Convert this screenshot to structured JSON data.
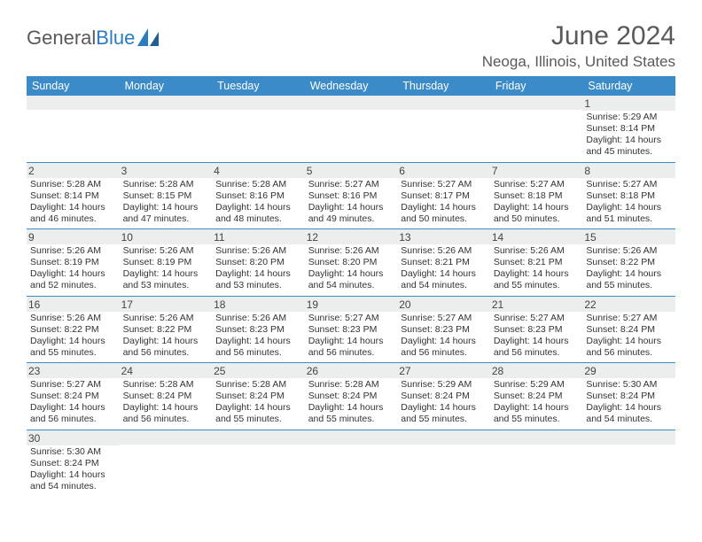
{
  "logo": {
    "text1": "General",
    "text2": "Blue"
  },
  "title": "June 2024",
  "location": "Neoga, Illinois, United States",
  "colors": {
    "header_bg": "#3b8bc9",
    "header_fg": "#ffffff",
    "daynum_bg": "#eceded",
    "rule": "#3b8bc9",
    "text": "#333333",
    "logo_gray": "#58595b",
    "logo_blue": "#2b7bbf"
  },
  "weekdays": [
    "Sunday",
    "Monday",
    "Tuesday",
    "Wednesday",
    "Thursday",
    "Friday",
    "Saturday"
  ],
  "weeks": [
    [
      {
        "n": "",
        "sr": "",
        "ss": "",
        "dl": ""
      },
      {
        "n": "",
        "sr": "",
        "ss": "",
        "dl": ""
      },
      {
        "n": "",
        "sr": "",
        "ss": "",
        "dl": ""
      },
      {
        "n": "",
        "sr": "",
        "ss": "",
        "dl": ""
      },
      {
        "n": "",
        "sr": "",
        "ss": "",
        "dl": ""
      },
      {
        "n": "",
        "sr": "",
        "ss": "",
        "dl": ""
      },
      {
        "n": "1",
        "sr": "Sunrise: 5:29 AM",
        "ss": "Sunset: 8:14 PM",
        "dl": "Daylight: 14 hours and 45 minutes."
      }
    ],
    [
      {
        "n": "2",
        "sr": "Sunrise: 5:28 AM",
        "ss": "Sunset: 8:14 PM",
        "dl": "Daylight: 14 hours and 46 minutes."
      },
      {
        "n": "3",
        "sr": "Sunrise: 5:28 AM",
        "ss": "Sunset: 8:15 PM",
        "dl": "Daylight: 14 hours and 47 minutes."
      },
      {
        "n": "4",
        "sr": "Sunrise: 5:28 AM",
        "ss": "Sunset: 8:16 PM",
        "dl": "Daylight: 14 hours and 48 minutes."
      },
      {
        "n": "5",
        "sr": "Sunrise: 5:27 AM",
        "ss": "Sunset: 8:16 PM",
        "dl": "Daylight: 14 hours and 49 minutes."
      },
      {
        "n": "6",
        "sr": "Sunrise: 5:27 AM",
        "ss": "Sunset: 8:17 PM",
        "dl": "Daylight: 14 hours and 50 minutes."
      },
      {
        "n": "7",
        "sr": "Sunrise: 5:27 AM",
        "ss": "Sunset: 8:18 PM",
        "dl": "Daylight: 14 hours and 50 minutes."
      },
      {
        "n": "8",
        "sr": "Sunrise: 5:27 AM",
        "ss": "Sunset: 8:18 PM",
        "dl": "Daylight: 14 hours and 51 minutes."
      }
    ],
    [
      {
        "n": "9",
        "sr": "Sunrise: 5:26 AM",
        "ss": "Sunset: 8:19 PM",
        "dl": "Daylight: 14 hours and 52 minutes."
      },
      {
        "n": "10",
        "sr": "Sunrise: 5:26 AM",
        "ss": "Sunset: 8:19 PM",
        "dl": "Daylight: 14 hours and 53 minutes."
      },
      {
        "n": "11",
        "sr": "Sunrise: 5:26 AM",
        "ss": "Sunset: 8:20 PM",
        "dl": "Daylight: 14 hours and 53 minutes."
      },
      {
        "n": "12",
        "sr": "Sunrise: 5:26 AM",
        "ss": "Sunset: 8:20 PM",
        "dl": "Daylight: 14 hours and 54 minutes."
      },
      {
        "n": "13",
        "sr": "Sunrise: 5:26 AM",
        "ss": "Sunset: 8:21 PM",
        "dl": "Daylight: 14 hours and 54 minutes."
      },
      {
        "n": "14",
        "sr": "Sunrise: 5:26 AM",
        "ss": "Sunset: 8:21 PM",
        "dl": "Daylight: 14 hours and 55 minutes."
      },
      {
        "n": "15",
        "sr": "Sunrise: 5:26 AM",
        "ss": "Sunset: 8:22 PM",
        "dl": "Daylight: 14 hours and 55 minutes."
      }
    ],
    [
      {
        "n": "16",
        "sr": "Sunrise: 5:26 AM",
        "ss": "Sunset: 8:22 PM",
        "dl": "Daylight: 14 hours and 55 minutes."
      },
      {
        "n": "17",
        "sr": "Sunrise: 5:26 AM",
        "ss": "Sunset: 8:22 PM",
        "dl": "Daylight: 14 hours and 56 minutes."
      },
      {
        "n": "18",
        "sr": "Sunrise: 5:26 AM",
        "ss": "Sunset: 8:23 PM",
        "dl": "Daylight: 14 hours and 56 minutes."
      },
      {
        "n": "19",
        "sr": "Sunrise: 5:27 AM",
        "ss": "Sunset: 8:23 PM",
        "dl": "Daylight: 14 hours and 56 minutes."
      },
      {
        "n": "20",
        "sr": "Sunrise: 5:27 AM",
        "ss": "Sunset: 8:23 PM",
        "dl": "Daylight: 14 hours and 56 minutes."
      },
      {
        "n": "21",
        "sr": "Sunrise: 5:27 AM",
        "ss": "Sunset: 8:23 PM",
        "dl": "Daylight: 14 hours and 56 minutes."
      },
      {
        "n": "22",
        "sr": "Sunrise: 5:27 AM",
        "ss": "Sunset: 8:24 PM",
        "dl": "Daylight: 14 hours and 56 minutes."
      }
    ],
    [
      {
        "n": "23",
        "sr": "Sunrise: 5:27 AM",
        "ss": "Sunset: 8:24 PM",
        "dl": "Daylight: 14 hours and 56 minutes."
      },
      {
        "n": "24",
        "sr": "Sunrise: 5:28 AM",
        "ss": "Sunset: 8:24 PM",
        "dl": "Daylight: 14 hours and 56 minutes."
      },
      {
        "n": "25",
        "sr": "Sunrise: 5:28 AM",
        "ss": "Sunset: 8:24 PM",
        "dl": "Daylight: 14 hours and 55 minutes."
      },
      {
        "n": "26",
        "sr": "Sunrise: 5:28 AM",
        "ss": "Sunset: 8:24 PM",
        "dl": "Daylight: 14 hours and 55 minutes."
      },
      {
        "n": "27",
        "sr": "Sunrise: 5:29 AM",
        "ss": "Sunset: 8:24 PM",
        "dl": "Daylight: 14 hours and 55 minutes."
      },
      {
        "n": "28",
        "sr": "Sunrise: 5:29 AM",
        "ss": "Sunset: 8:24 PM",
        "dl": "Daylight: 14 hours and 55 minutes."
      },
      {
        "n": "29",
        "sr": "Sunrise: 5:30 AM",
        "ss": "Sunset: 8:24 PM",
        "dl": "Daylight: 14 hours and 54 minutes."
      }
    ],
    [
      {
        "n": "30",
        "sr": "Sunrise: 5:30 AM",
        "ss": "Sunset: 8:24 PM",
        "dl": "Daylight: 14 hours and 54 minutes."
      },
      {
        "n": "",
        "sr": "",
        "ss": "",
        "dl": ""
      },
      {
        "n": "",
        "sr": "",
        "ss": "",
        "dl": ""
      },
      {
        "n": "",
        "sr": "",
        "ss": "",
        "dl": ""
      },
      {
        "n": "",
        "sr": "",
        "ss": "",
        "dl": ""
      },
      {
        "n": "",
        "sr": "",
        "ss": "",
        "dl": ""
      },
      {
        "n": "",
        "sr": "",
        "ss": "",
        "dl": ""
      }
    ]
  ]
}
